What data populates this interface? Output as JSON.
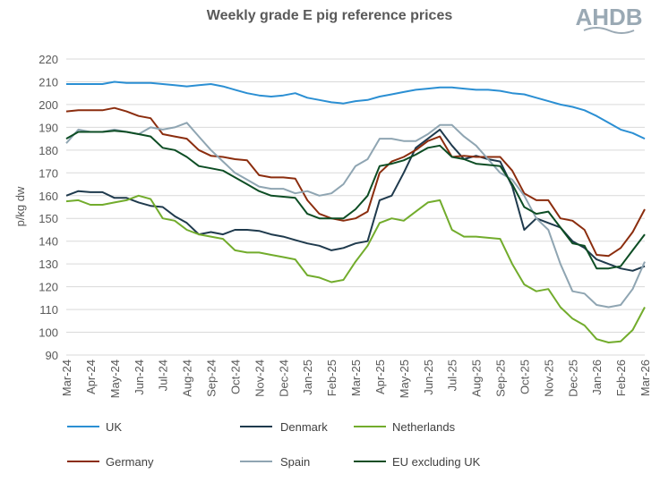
{
  "logo_text": "AHDB",
  "chart_data": {
    "type": "line",
    "title": "Weekly grade E pig reference prices",
    "ylabel": "p/kg dw",
    "xlabel": "",
    "ylim": [
      90,
      220
    ],
    "yticks": [
      90,
      100,
      110,
      120,
      130,
      140,
      150,
      160,
      170,
      180,
      190,
      200,
      210,
      220
    ],
    "grid": true,
    "legend": "bottom",
    "xtick_labels": [
      "Mar-24",
      "Apr-24",
      "May-24",
      "Jun-24",
      "Jul-24",
      "Aug-24",
      "Sep-24",
      "Oct-24",
      "Nov-24",
      "Dec-24",
      "Jan-25",
      "Feb-25",
      "Mar-25",
      "Apr-25",
      "May-25",
      "Jun-25",
      "Jul-25",
      "Aug-25",
      "Sep-25",
      "Oct-25",
      "Nov-25",
      "Dec-25",
      "Jan-26",
      "Feb-26",
      "Mar-26"
    ],
    "x_note": "values at start and middle of each month, Mar-24 to Mar-26",
    "series": [
      {
        "name": "UK",
        "color": "#2b8fd3",
        "values": [
          209,
          209,
          209,
          209,
          210,
          209.5,
          209.5,
          209.5,
          209,
          208.5,
          208,
          208.5,
          209,
          208,
          206.5,
          205,
          204,
          203.5,
          204,
          205,
          203,
          202,
          201,
          200.5,
          201.5,
          202,
          203.5,
          204.5,
          205.5,
          206.5,
          207,
          207.5,
          207.5,
          207,
          206.5,
          206.5,
          206,
          205,
          204.5,
          203,
          201.5,
          200,
          199,
          197.5,
          195,
          192,
          189,
          187.5,
          185
        ]
      },
      {
        "name": "Denmark",
        "color": "#1f3a4d",
        "values": [
          160,
          162,
          161.5,
          161.5,
          159,
          159,
          157,
          155.5,
          155,
          151,
          148,
          143,
          144,
          143,
          145,
          145,
          144.5,
          143,
          142,
          140.5,
          139,
          138,
          136,
          137,
          139,
          140,
          158,
          160,
          170,
          181,
          185,
          189,
          182,
          176,
          177.5,
          176,
          175,
          164,
          145,
          150,
          148,
          146,
          140,
          137,
          132,
          130,
          128,
          127,
          129
        ]
      },
      {
        "name": "Netherlands",
        "color": "#72ac2c",
        "values": [
          157.5,
          158,
          156,
          156,
          157,
          158,
          160,
          158.5,
          150,
          149,
          145,
          143,
          142,
          141,
          136,
          135,
          135,
          134,
          133,
          132,
          125,
          124,
          122,
          123,
          131,
          138,
          148,
          150,
          149,
          153,
          157,
          158,
          145,
          142,
          142,
          141.5,
          141,
          130,
          121,
          118,
          119,
          111,
          106,
          103,
          97,
          95.5,
          96,
          101,
          111
        ]
      },
      {
        "name": "Germany",
        "color": "#8b2d0e",
        "values": [
          197,
          197.5,
          197.5,
          197.5,
          198.5,
          197,
          195,
          194,
          187,
          186,
          185,
          180,
          177.5,
          177,
          176,
          175.5,
          169,
          168,
          168,
          167.5,
          158,
          152,
          150,
          149,
          150,
          153,
          170,
          175,
          177,
          180,
          184,
          186,
          177,
          177.5,
          177,
          177,
          177,
          171,
          161,
          158,
          158,
          150,
          149,
          145,
          134,
          133.5,
          137,
          144,
          154
        ]
      },
      {
        "name": "Spain",
        "color": "#8fa5b2",
        "values": [
          183,
          189,
          188,
          188,
          189,
          188,
          187,
          190,
          189,
          190,
          192,
          186,
          180,
          175,
          170,
          167,
          164,
          163,
          163,
          161,
          162,
          160,
          161,
          165,
          173,
          176,
          185,
          185,
          184,
          184,
          187,
          191,
          191,
          186,
          182,
          176,
          170,
          167,
          160,
          150,
          145,
          130,
          118,
          117,
          112,
          111,
          112,
          119,
          131
        ]
      },
      {
        "name": "EU excluding UK",
        "color": "#0d4d24",
        "values": [
          185,
          188,
          188,
          188,
          188.5,
          188,
          187,
          186,
          181,
          180,
          177,
          173,
          172,
          171,
          168,
          165,
          162,
          160,
          159.5,
          159,
          152,
          150,
          150,
          150,
          154,
          160,
          173,
          174,
          175.5,
          178,
          181,
          182,
          177,
          176,
          174,
          173.5,
          173,
          165,
          155,
          152,
          153,
          146,
          139,
          138,
          128,
          128,
          129,
          136,
          143
        ]
      }
    ]
  }
}
